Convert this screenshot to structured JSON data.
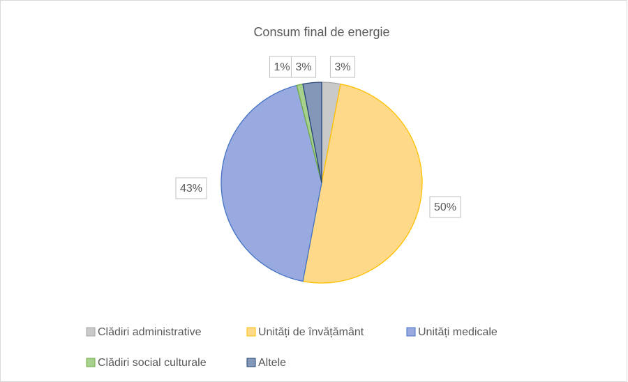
{
  "chart_data": {
    "type": "pie",
    "title": "Consum final de energie",
    "categories": [
      "Clădiri administrative",
      "Unități de învățământ",
      "Unități medicale",
      "Clădiri social culturale",
      "Altele"
    ],
    "values": [
      3,
      50,
      43,
      1,
      3
    ],
    "value_labels": [
      "3%",
      "50%",
      "43%",
      "1%",
      "3%"
    ],
    "colors": [
      "#c9c9c9",
      "#ffd98a",
      "#98aadf",
      "#a9d18e",
      "#8497b8"
    ],
    "edge_colors": [
      "#a5a5a5",
      "#ffc000",
      "#4472c4",
      "#70ad47",
      "#264478"
    ],
    "legend": "bottom"
  }
}
